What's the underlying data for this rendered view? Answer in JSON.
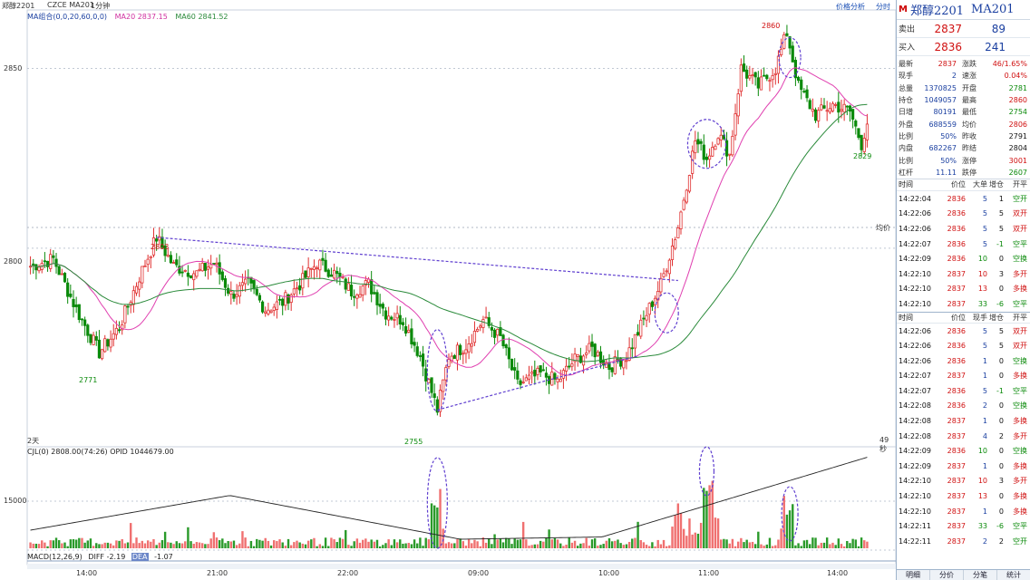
{
  "topbar": {
    "symbol": "郑醇2201",
    "source": "CZCE MA201",
    "period": "1分钟",
    "link_analysis": "价格分析",
    "link_zoom": "分时"
  },
  "legend": {
    "ma_header": "MA组合(0,0,20,60,0,0)",
    "ma20": "MA20 2837.15",
    "ma60": "MA60 2841.52"
  },
  "vol_legend": "CJL(0) 2808.00(74:26) OPID 1044679.00",
  "macd_legend": {
    "name": "MACD(12,26,9)",
    "diff": "DIFF -2.19",
    "dea": "DEA",
    "macd": "-1.07"
  },
  "axis": {
    "y_labels": [
      "2850",
      "2800",
      "15000"
    ],
    "x_labels": [
      "14:00",
      "21:00",
      "22:00",
      "09:00",
      "10:00",
      "11:00",
      "14:00"
    ],
    "left_marker": "2天",
    "right_marker": "49秒",
    "mid_marker": "均价"
  },
  "price_labels": {
    "p2803": "2803",
    "p2771": "2771",
    "p2755": "2755",
    "p2860": "2860",
    "p2829": "2829"
  },
  "colors": {
    "up": "#e03030",
    "down": "#0a8a0a",
    "ma20": "#e040b0",
    "ma60": "#2a8a3a",
    "trend": "#6040d0"
  },
  "panel": {
    "name": "郑醇2201",
    "code": "MA201",
    "sell": {
      "label": "卖出",
      "price": "2837",
      "vol": "89"
    },
    "buy": {
      "label": "买入",
      "price": "2836",
      "vol": "241"
    },
    "stats": [
      {
        "k": "最新",
        "v": "2837",
        "vc": "red",
        "k2": "涨跌",
        "v2": "46/1.65%",
        "v2c": "red"
      },
      {
        "k": "现手",
        "v": "2",
        "vc": "blu",
        "k2": "速涨",
        "v2": "0.04%",
        "v2c": "red"
      },
      {
        "k": "总量",
        "v": "1370825",
        "vc": "blu",
        "k2": "开盘",
        "v2": "2781",
        "v2c": "grn"
      },
      {
        "k": "持仓",
        "v": "1049057",
        "vc": "blu",
        "k2": "最高",
        "v2": "2860",
        "v2c": "red"
      },
      {
        "k": "日增",
        "v": "80191",
        "vc": "blu",
        "k2": "最低",
        "v2": "2754",
        "v2c": "grn"
      },
      {
        "k": "外盘",
        "v": "688559",
        "vc": "blu",
        "k2": "均价",
        "v2": "2806",
        "v2c": "red"
      },
      {
        "k": "比例",
        "v": "50%",
        "vc": "blu",
        "k2": "昨收",
        "v2": "2791",
        "v2c": "blk"
      },
      {
        "k": "内盘",
        "v": "682267",
        "vc": "blu",
        "k2": "昨结",
        "v2": "2804",
        "v2c": "blk"
      },
      {
        "k": "比例",
        "v": "50%",
        "vc": "blu",
        "k2": "涨停",
        "v2": "3001",
        "v2c": "red"
      },
      {
        "k": "杠杆",
        "v": "11.11",
        "vc": "blu",
        "k2": "跌停",
        "v2": "2607",
        "v2c": "grn"
      }
    ],
    "ticks1_header": [
      "时间",
      "价位",
      "大单",
      "增仓",
      "开平"
    ],
    "ticks1": [
      [
        "14:22:04",
        "2836",
        "5",
        "1",
        "空开"
      ],
      [
        "14:22:06",
        "2836",
        "5",
        "5",
        "双开"
      ],
      [
        "14:22:06",
        "2836",
        "5",
        "5",
        "双开"
      ],
      [
        "14:22:07",
        "2836",
        "5",
        "-1",
        "空平"
      ],
      [
        "14:22:09",
        "2836",
        "10",
        "0",
        "空换"
      ],
      [
        "14:22:10",
        "2837",
        "10",
        "3",
        "多开"
      ],
      [
        "14:22:10",
        "2837",
        "13",
        "0",
        "多换"
      ],
      [
        "14:22:10",
        "2837",
        "33",
        "-6",
        "空平"
      ]
    ],
    "ticks2_header": [
      "时间",
      "价位",
      "现手",
      "增仓",
      "开平"
    ],
    "ticks2": [
      [
        "14:22:06",
        "2836",
        "5",
        "5",
        "双开"
      ],
      [
        "14:22:06",
        "2836",
        "5",
        "5",
        "双开"
      ],
      [
        "14:22:06",
        "2836",
        "1",
        "0",
        "空换"
      ],
      [
        "14:22:07",
        "2837",
        "1",
        "0",
        "多换"
      ],
      [
        "14:22:07",
        "2836",
        "5",
        "-1",
        "空平"
      ],
      [
        "14:22:08",
        "2836",
        "2",
        "0",
        "空换"
      ],
      [
        "14:22:08",
        "2837",
        "1",
        "0",
        "多换"
      ],
      [
        "14:22:08",
        "2837",
        "4",
        "2",
        "多开"
      ],
      [
        "14:22:09",
        "2836",
        "10",
        "0",
        "空换"
      ],
      [
        "14:22:09",
        "2837",
        "1",
        "0",
        "多换"
      ],
      [
        "14:22:10",
        "2837",
        "10",
        "3",
        "多开"
      ],
      [
        "14:22:10",
        "2837",
        "13",
        "0",
        "多换"
      ],
      [
        "14:22:10",
        "2837",
        "1",
        "0",
        "多换"
      ],
      [
        "14:22:11",
        "2837",
        "33",
        "-6",
        "空平"
      ],
      [
        "14:22:11",
        "2837",
        "2",
        "2",
        "空开"
      ]
    ],
    "tabs": [
      "明细",
      "分价",
      "分笔",
      "统计"
    ]
  },
  "chart_data": {
    "type": "candlestick",
    "y_range": [
      2745,
      2866
    ],
    "y_ticks": [
      2800,
      2850
    ],
    "anchors": [
      [
        0,
        2795
      ],
      [
        8,
        2797
      ],
      [
        16,
        2783
      ],
      [
        24,
        2771
      ],
      [
        31,
        2778
      ],
      [
        38,
        2792
      ],
      [
        44,
        2803
      ],
      [
        50,
        2795
      ],
      [
        58,
        2793
      ],
      [
        64,
        2796
      ],
      [
        70,
        2787
      ],
      [
        76,
        2790
      ],
      [
        82,
        2783
      ],
      [
        88,
        2785
      ],
      [
        94,
        2790
      ],
      [
        100,
        2796
      ],
      [
        106,
        2793
      ],
      [
        112,
        2788
      ],
      [
        118,
        2790
      ],
      [
        124,
        2782
      ],
      [
        130,
        2780
      ],
      [
        136,
        2770
      ],
      [
        142,
        2755
      ],
      [
        146,
        2770
      ],
      [
        152,
        2773
      ],
      [
        158,
        2780
      ],
      [
        164,
        2775
      ],
      [
        170,
        2762
      ],
      [
        178,
        2765
      ],
      [
        184,
        2763
      ],
      [
        190,
        2769
      ],
      [
        196,
        2772
      ],
      [
        202,
        2767
      ],
      [
        208,
        2770
      ],
      [
        214,
        2780
      ],
      [
        220,
        2790
      ],
      [
        226,
        2806
      ],
      [
        232,
        2830
      ],
      [
        236,
        2825
      ],
      [
        240,
        2832
      ],
      [
        244,
        2826
      ],
      [
        248,
        2850
      ],
      [
        254,
        2845
      ],
      [
        260,
        2850
      ],
      [
        264,
        2860
      ],
      [
        268,
        2845
      ],
      [
        274,
        2837
      ],
      [
        280,
        2840
      ],
      [
        286,
        2838
      ],
      [
        290,
        2829
      ],
      [
        292,
        2835
      ]
    ],
    "n_bars": 293
  }
}
